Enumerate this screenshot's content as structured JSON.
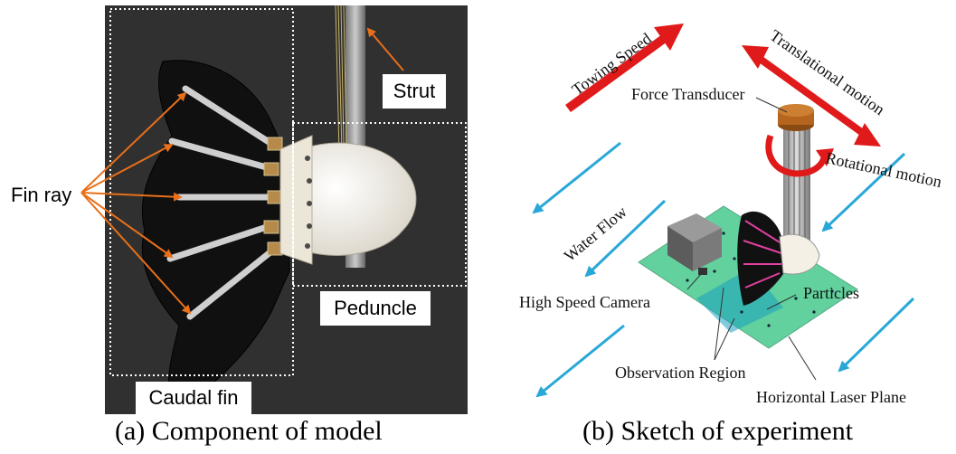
{
  "figure": {
    "panel_a": {
      "caption": "(a) Component of model",
      "labels": {
        "fin_ray": "Fin ray",
        "strut": "Strut",
        "peduncle": "Peduncle",
        "caudal_fin": "Caudal fin"
      }
    },
    "panel_b": {
      "caption": "(b) Sketch of experiment",
      "labels": {
        "towing_speed": "Towing Speed",
        "translational_motion": "Translational motion",
        "force_transducer": "Force Transducer",
        "rotational_motion": "Rotational motion",
        "water_flow": "Water Flow",
        "high_speed_camera": "High Speed Camera",
        "particles": "Particles",
        "observation_region": "Observation Region",
        "horizontal_laser_plane": "Horizontal Laser Plane"
      }
    },
    "colors": {
      "photo_bg": "#2b2b2b",
      "annotation_arrow": "#e8701a",
      "red_arrow": "#e01a1a",
      "flow_arrow": "#29a8d8",
      "laser_plane": "#2ec27e",
      "transducer": "#b5651d"
    }
  }
}
